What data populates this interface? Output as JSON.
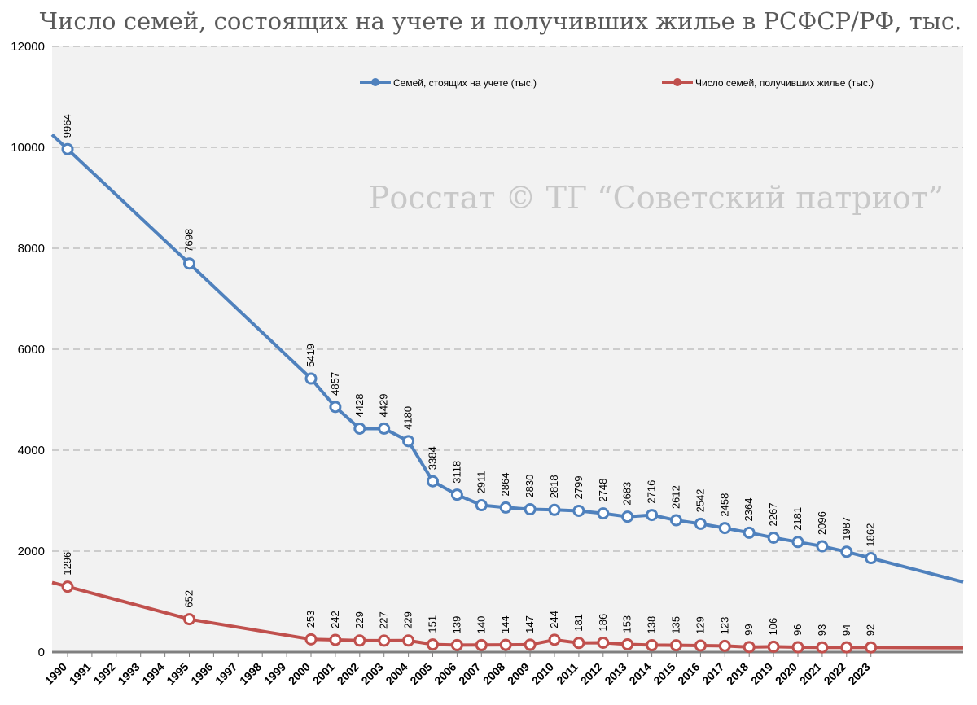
{
  "watermark": "Росстат © ТГ “Советский патриот”",
  "chart_data": {
    "type": "line",
    "title": "Число семей, состоящих на учете и получивших жилье в РСФСР/РФ, тыс.",
    "xlabel": "",
    "ylabel": "",
    "ylim": [
      0,
      12000
    ],
    "yticks": [
      0,
      2000,
      4000,
      6000,
      8000,
      10000,
      12000
    ],
    "grid": true,
    "legend_position": "top",
    "categories": [
      "1990",
      "1991",
      "1992",
      "1993",
      "1994",
      "1995",
      "1996",
      "1997",
      "1998",
      "1999",
      "2000",
      "2001",
      "2002",
      "2003",
      "2004",
      "2005",
      "2006",
      "2007",
      "2008",
      "2009",
      "2010",
      "2011",
      "2012",
      "2013",
      "2014",
      "2015",
      "2016",
      "2017",
      "2018",
      "2019",
      "2020",
      "2021",
      "2022",
      "2023"
    ],
    "series": [
      {
        "name": "Семей, стоящих на учете (тыс.)",
        "color": "#4f81bd",
        "values": [
          9964,
          null,
          null,
          null,
          null,
          7698,
          null,
          null,
          null,
          null,
          5419,
          4857,
          4428,
          4429,
          4180,
          3384,
          3118,
          2911,
          2864,
          2830,
          2818,
          2799,
          2748,
          2683,
          2716,
          2612,
          2542,
          2458,
          2364,
          2267,
          2181,
          2096,
          1987,
          1862
        ]
      },
      {
        "name": "Число семей, получивших жилье (тыс.)",
        "color": "#c0504d",
        "values": [
          1296,
          null,
          null,
          null,
          null,
          652,
          null,
          null,
          null,
          null,
          253,
          242,
          229,
          227,
          229,
          151,
          139,
          140,
          144,
          147,
          244,
          181,
          186,
          153,
          138,
          135,
          129,
          123,
          99,
          106,
          96,
          93,
          94,
          92
        ]
      }
    ]
  }
}
